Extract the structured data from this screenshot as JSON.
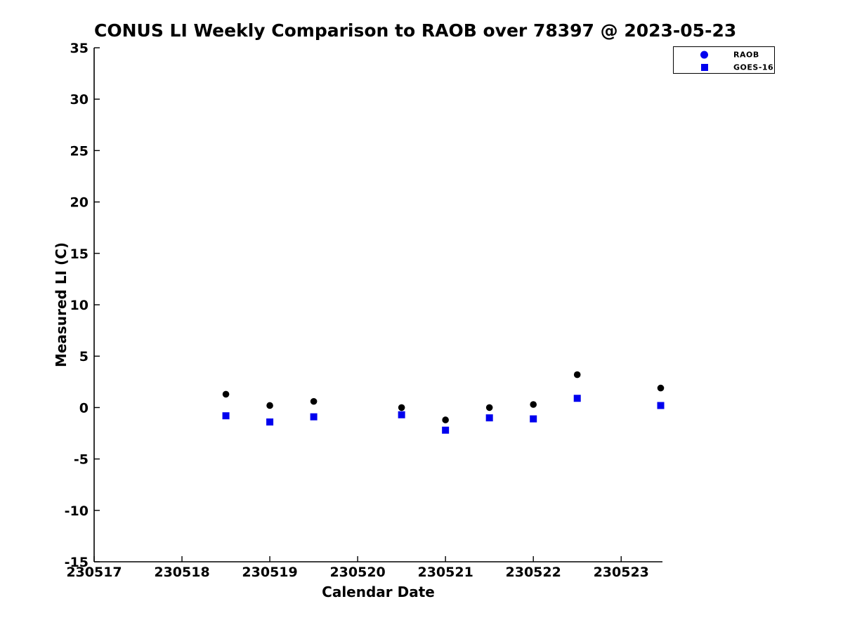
{
  "chart_data": {
    "type": "scatter",
    "title": "CONUS LI Weekly Comparison to RAOB over 78397 @ 2023-05-23",
    "xlabel": "Calendar Date",
    "ylabel": "Measured LI (C)",
    "xlim": [
      230517,
      230523.47
    ],
    "ylim": [
      -15,
      35
    ],
    "x_ticks": [
      230517,
      230518,
      230519,
      230520,
      230521,
      230522,
      230523
    ],
    "y_ticks": [
      -15,
      -10,
      -5,
      0,
      5,
      10,
      15,
      20,
      25,
      30,
      35
    ],
    "grid": false,
    "legend_position": "top-right",
    "colors": {
      "raob_marker": "#000000",
      "goes_marker": "#0000ee",
      "legend_marker": "#0000ee",
      "axis": "#000000"
    },
    "series": [
      {
        "name": "RAOB",
        "marker": "circle",
        "color": "#000000",
        "x": [
          230518.5,
          230519.0,
          230519.5,
          230520.5,
          230521.0,
          230521.5,
          230522.0,
          230522.5,
          230523.45
        ],
        "y": [
          1.3,
          0.2,
          0.6,
          0.0,
          -1.2,
          0.0,
          0.3,
          3.2,
          1.9
        ]
      },
      {
        "name": "GOES-16",
        "marker": "square",
        "color": "#0000ee",
        "x": [
          230518.5,
          230519.0,
          230519.5,
          230520.5,
          230521.0,
          230521.5,
          230522.0,
          230522.5,
          230523.45
        ],
        "y": [
          -0.8,
          -1.4,
          -0.9,
          -0.7,
          -2.2,
          -1.0,
          -1.1,
          0.9,
          0.2
        ]
      }
    ]
  }
}
